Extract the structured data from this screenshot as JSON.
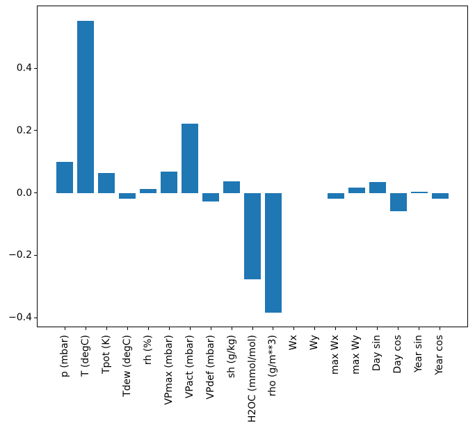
{
  "figure": {
    "background_color": "#ffffff",
    "spine_color": "#000000",
    "tick_color": "#000000"
  },
  "chart_data": {
    "type": "bar",
    "title": "",
    "xlabel": "",
    "ylabel": "",
    "categories": [
      "p (mbar)",
      "T (degC)",
      "Tpot (K)",
      "Tdew (degC)",
      "rh (%)",
      "VPmax (mbar)",
      "VPact (mbar)",
      "VPdef (mbar)",
      "sh (g/kg)",
      "H2OC (mmol/mol)",
      "rho (g/m**3)",
      "Wx",
      "Wy",
      "max Wx",
      "max Wy",
      "Day sin",
      "Day cos",
      "Year sin",
      "Year cos"
    ],
    "values": [
      0.099,
      0.552,
      0.063,
      -0.018,
      0.013,
      0.069,
      0.221,
      -0.027,
      0.036,
      -0.277,
      -0.384,
      0.0,
      0.0,
      -0.019,
      0.017,
      0.035,
      -0.059,
      0.003,
      -0.019
    ],
    "bar_color": "#1f77b4",
    "bar_width": 0.8,
    "grid": false,
    "legend_position": "none",
    "xlim": [
      -1.34,
      19.34
    ],
    "ylim": [
      -0.431,
      0.601
    ],
    "yticks": {
      "values": [
        0.4,
        0.2,
        0.0,
        -0.2,
        -0.4
      ],
      "labels": [
        "0.4",
        "0.2",
        "0.0",
        "−0.2",
        "−0.4"
      ]
    },
    "xtick_rotation_deg": 90
  }
}
